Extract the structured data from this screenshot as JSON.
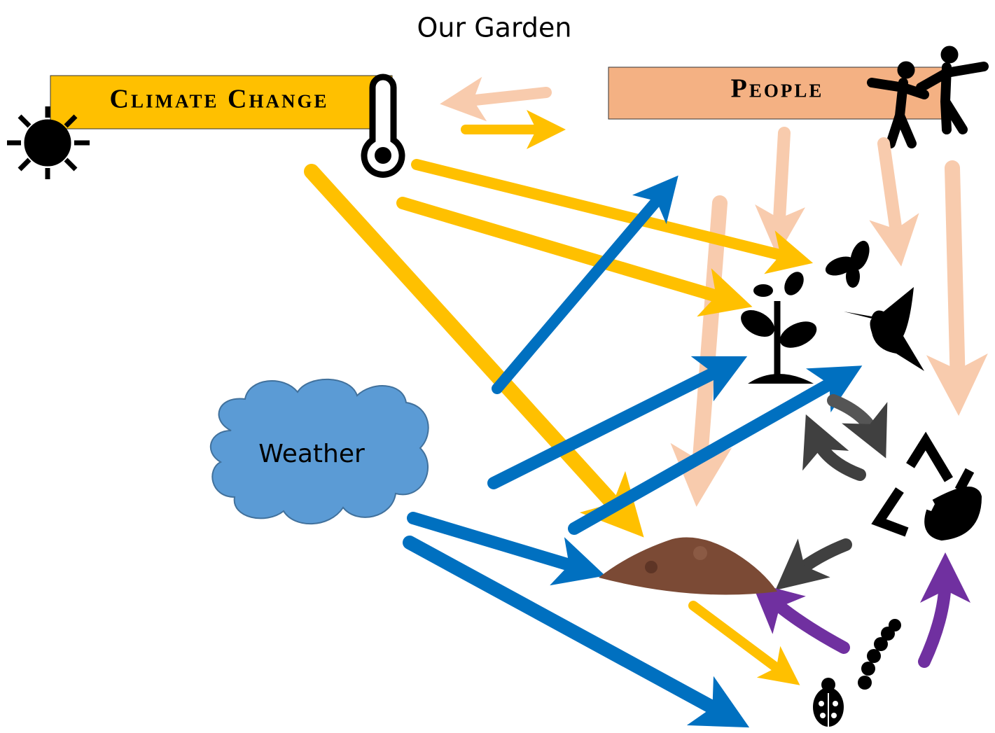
{
  "title": "Our Garden",
  "nodes": [
    {
      "label": "Climate Change"
    },
    {
      "label": "People"
    },
    {
      "label": "Weather"
    }
  ]
}
